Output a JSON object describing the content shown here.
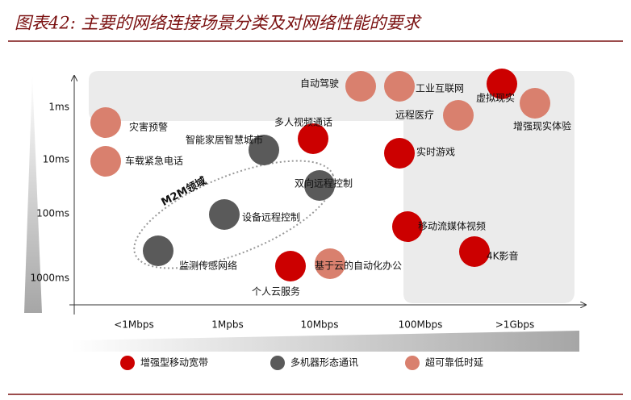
{
  "title": "图表42: 主要的网络连接场景分类及对网络性能的要求",
  "y_axis_labels": [
    "1ms",
    "10ms",
    "100ms",
    "1000ms"
  ],
  "x_axis_labels": [
    "<1Mbps",
    "1Mpbs",
    "10Mbps",
    "100Mbps",
    ">1Gbps"
  ],
  "region_label": "M2M领域",
  "legend": [
    {
      "label": "增强型移动宽带",
      "color": "#cc0000"
    },
    {
      "label": "多机器形态通讯",
      "color": "#5a5a5a"
    },
    {
      "label": "超可靠低时延",
      "color": "#d9806e"
    }
  ],
  "nodes": [
    {
      "label": "自动驾驶",
      "group": 2
    },
    {
      "label": "工业互联网",
      "group": 2
    },
    {
      "label": "虚拟现实",
      "group": 0
    },
    {
      "label": "增强现实体验",
      "group": 2
    },
    {
      "label": "远程医疗",
      "group": 2
    },
    {
      "label": "灾害预警",
      "group": 2
    },
    {
      "label": "车载紧急电话",
      "group": 2
    },
    {
      "label": "智能家居智慧城市",
      "group": 1
    },
    {
      "label": "多人视频通话",
      "group": 0
    },
    {
      "label": "实时游戏",
      "group": 0
    },
    {
      "label": "双向远程控制",
      "group": 1
    },
    {
      "label": "设备远程控制",
      "group": 1
    },
    {
      "label": "移动流媒体视频",
      "group": 0
    },
    {
      "label": "4K影音",
      "group": 0
    },
    {
      "label": "监测传感网络",
      "group": 1
    },
    {
      "label": "个人云服务",
      "group": 0
    },
    {
      "label": "基于云的自动化办公",
      "group": 2
    }
  ]
}
